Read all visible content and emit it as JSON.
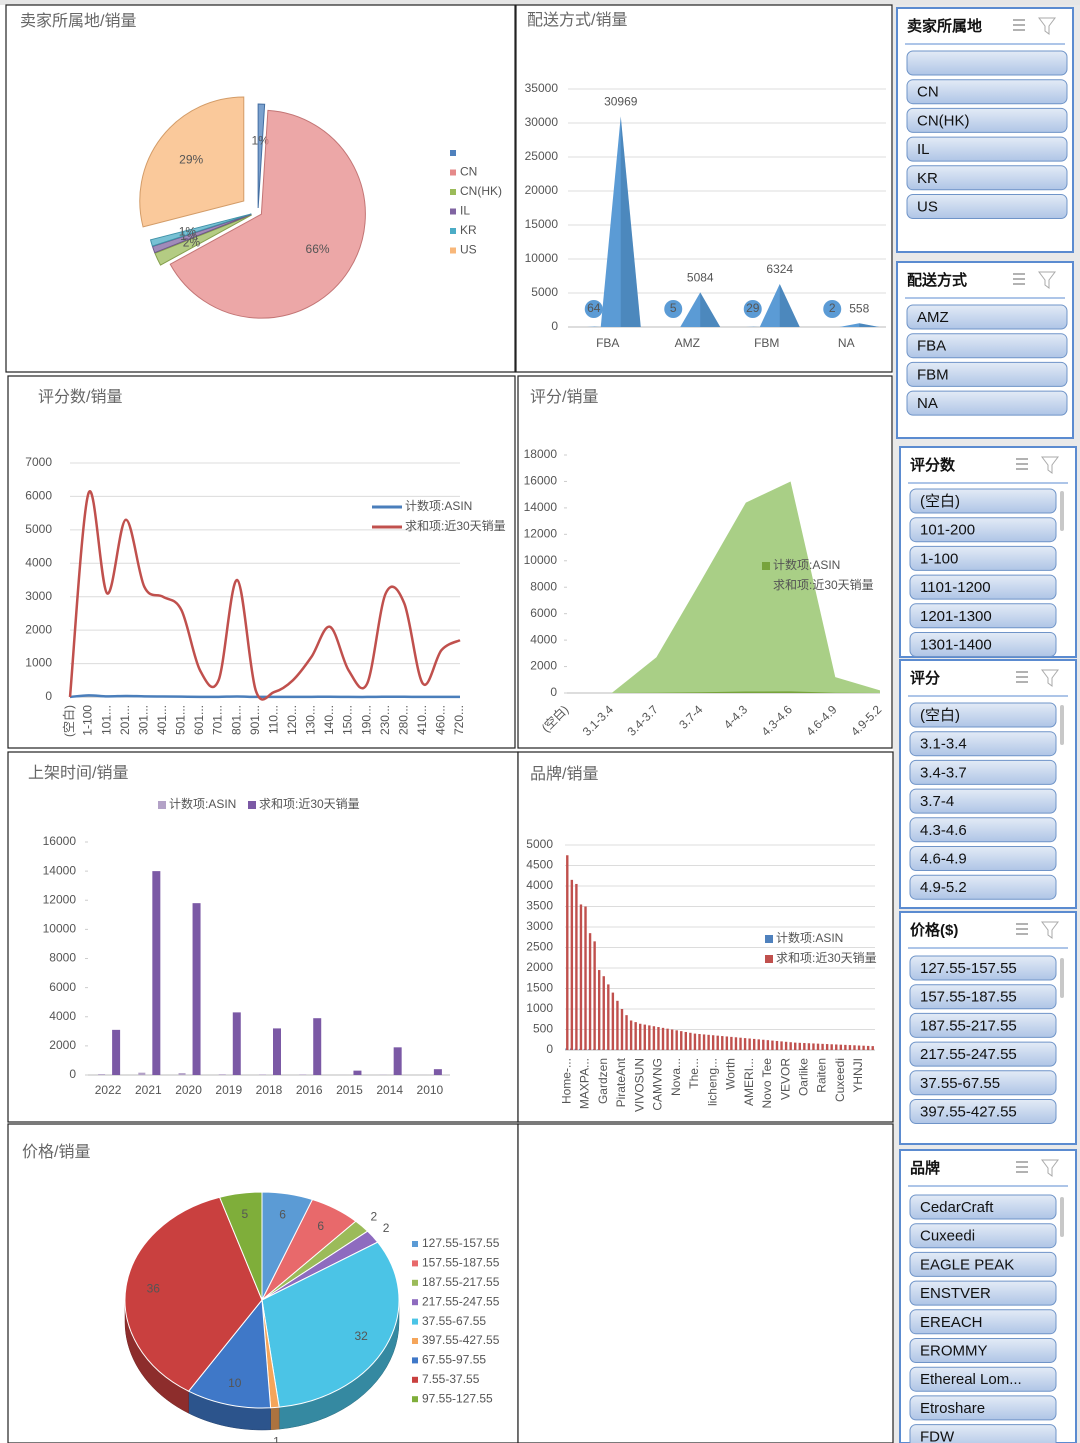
{
  "chart_data": [
    {
      "type": "pie",
      "title": "卖家所属地/销量",
      "categories": [
        null,
        "CN",
        "CN(HK)",
        "IL",
        "KR",
        "US"
      ],
      "values": [
        1,
        66,
        2,
        1,
        1,
        29
      ],
      "value_labels": [
        "1%",
        "66%",
        "2%",
        "1%",
        "1%",
        "29%"
      ],
      "colors": [
        "#4f81bd",
        "#e58a8a",
        "#9bbb59",
        "#8064a2",
        "#4bacc6",
        "#f8b77a"
      ],
      "legend": "right"
    },
    {
      "type": "bar",
      "shape": "cone",
      "title": "配送方式/销量",
      "categories": [
        "FBA",
        "AMZ",
        "FBM",
        "NA"
      ],
      "series": [
        {
          "color": "#5b9bd5",
          "values": [
            64,
            5,
            29,
            2
          ]
        },
        {
          "color": "#5b9bd5",
          "values": [
            30969,
            5084,
            6324,
            558
          ]
        }
      ],
      "ylim": [
        0,
        35000
      ],
      "yticks": [
        0,
        5000,
        10000,
        15000,
        20000,
        25000,
        30000,
        35000
      ],
      "grid": true,
      "show_values": true
    },
    {
      "type": "line",
      "smooth": true,
      "title": "评分数/销量",
      "categories": [
        "(空白)",
        "1-100",
        "101...",
        "201...",
        "301...",
        "401...",
        "501...",
        "601...",
        "701...",
        "801...",
        "901...",
        "110...",
        "120...",
        "130...",
        "140...",
        "150...",
        "190...",
        "230...",
        "280...",
        "410...",
        "460...",
        "720..."
      ],
      "series": [
        {
          "name": "计数项:ASIN",
          "color": "#4a7ebb",
          "values": [
            2,
            50,
            20,
            30,
            20,
            15,
            10,
            5,
            5,
            15,
            3,
            3,
            3,
            5,
            8,
            3,
            2,
            8,
            6,
            2,
            4,
            5
          ]
        },
        {
          "name": "求和项:近30天销量",
          "color": "#c0504d",
          "values": [
            0,
            6100,
            3100,
            5300,
            3300,
            3000,
            2600,
            800,
            500,
            3500,
            200,
            150,
            500,
            1200,
            2100,
            800,
            400,
            3100,
            2800,
            400,
            1400,
            1700
          ]
        }
      ],
      "ylim": [
        0,
        7000
      ],
      "yticks": [
        0,
        1000,
        2000,
        3000,
        4000,
        5000,
        6000,
        7000
      ],
      "grid": true,
      "legend": "right"
    },
    {
      "type": "area",
      "title": "评分/销量",
      "categories": [
        "(空白)",
        "3.1-3.4",
        "3.4-3.7",
        "3.7-4",
        "4-4.3",
        "4.3-4.6",
        "4.6-4.9",
        "4.9-5.2"
      ],
      "series": [
        {
          "name": "计数项:ASIN",
          "color": "#77a33c",
          "values": [
            1,
            3,
            20,
            60,
            110,
            120,
            15,
            3
          ]
        },
        {
          "name": "求和项:近30天销量",
          "color": "#a9cf86",
          "values": [
            0,
            0,
            2700,
            8500,
            14400,
            16000,
            1200,
            200
          ]
        }
      ],
      "ylim": [
        0,
        18000
      ],
      "yticks": [
        0,
        2000,
        4000,
        6000,
        8000,
        10000,
        12000,
        14000,
        16000,
        18000
      ],
      "grid": false,
      "legend": "right"
    },
    {
      "type": "bar",
      "title": "上架时间/销量",
      "categories": [
        "2022",
        "2021",
        "2020",
        "2019",
        "2018",
        "2016",
        "2015",
        "2014",
        "2010"
      ],
      "series": [
        {
          "name": "计数项:ASIN",
          "color": "#b3a2c7",
          "values": [
            60,
            160,
            130,
            50,
            40,
            40,
            5,
            20,
            5
          ]
        },
        {
          "name": "求和项:近30天销量",
          "color": "#7b59a5",
          "values": [
            3100,
            14000,
            11800,
            4300,
            3200,
            3900,
            300,
            1900,
            400
          ]
        }
      ],
      "ylim": [
        0,
        16000
      ],
      "yticks": [
        0,
        2000,
        4000,
        6000,
        8000,
        10000,
        12000,
        14000,
        16000
      ],
      "grid": false,
      "legend": "top"
    },
    {
      "type": "bar",
      "title": "品牌/销量",
      "categories": [
        "Home-...",
        null,
        null,
        null,
        "MAXPA...",
        null,
        null,
        null,
        "Gardzen",
        null,
        null,
        null,
        "PirateAnt",
        null,
        null,
        null,
        "VIVOSUN",
        null,
        null,
        null,
        "CAMVNG",
        null,
        null,
        null,
        "Nova...",
        null,
        null,
        null,
        "The...",
        null,
        null,
        null,
        "licheng...",
        null,
        null,
        null,
        "Worth",
        null,
        null,
        null,
        "AMERI...",
        null,
        null,
        null,
        "Novo Tee",
        null,
        null,
        null,
        "VEVOR",
        null,
        null,
        null,
        "Oarlike",
        null,
        null,
        null,
        "Raiten",
        null,
        null,
        null,
        "Cuxeedi",
        null,
        null,
        null,
        "YHNJI",
        null,
        null,
        null
      ],
      "series": [
        {
          "name": "计数项:ASIN",
          "color": "#4f81bd",
          "values": [
            40,
            35,
            30,
            28,
            25,
            22,
            20,
            18,
            15,
            14,
            12,
            11,
            10,
            9,
            8,
            8,
            7,
            7,
            7,
            6,
            6,
            6,
            6,
            5,
            5,
            5,
            5,
            5,
            4,
            4,
            4,
            4,
            4,
            4,
            4,
            3,
            3,
            3,
            3,
            3,
            3,
            3,
            3,
            3,
            3,
            2,
            2,
            2,
            2,
            2,
            2,
            2,
            2,
            2,
            2,
            2,
            2,
            2,
            2,
            2,
            1,
            1,
            1,
            1,
            1,
            1,
            1,
            1
          ]
        },
        {
          "name": "求和项:近30天销量",
          "color": "#c0504d",
          "values": [
            4750,
            4150,
            4050,
            3550,
            3500,
            2850,
            2650,
            1950,
            1800,
            1600,
            1400,
            1200,
            1000,
            850,
            720,
            680,
            640,
            620,
            600,
            580,
            560,
            540,
            520,
            500,
            480,
            460,
            440,
            420,
            400,
            390,
            380,
            370,
            360,
            350,
            340,
            330,
            320,
            310,
            300,
            290,
            280,
            270,
            260,
            250,
            240,
            230,
            220,
            210,
            200,
            190,
            180,
            175,
            170,
            165,
            160,
            155,
            150,
            145,
            140,
            135,
            130,
            125,
            120,
            115,
            110,
            105,
            100,
            95
          ]
        }
      ],
      "ylim": [
        0,
        5000
      ],
      "yticks": [
        0,
        500,
        1000,
        1500,
        2000,
        2500,
        3000,
        3500,
        4000,
        4500,
        5000
      ],
      "grid": true,
      "legend": "right"
    },
    {
      "type": "pie",
      "three_d": true,
      "title": "价格/销量",
      "categories": [
        "127.55-157.55",
        "157.55-187.55",
        "187.55-217.55",
        "217.55-247.55",
        "37.55-67.55",
        "397.55-427.55",
        "67.55-97.55",
        "7.55-37.55",
        "97.55-127.55"
      ],
      "values": [
        6,
        6,
        2,
        2,
        32,
        1,
        10,
        36,
        5
      ],
      "colors": [
        "#5b9bd5",
        "#e8696b",
        "#9bbb59",
        "#8e6bbf",
        "#4bc4e6",
        "#f5a55a",
        "#3f78c8",
        "#c9403f",
        "#7fae3a"
      ],
      "legend": "right"
    }
  ],
  "slicers": [
    {
      "title": "卖家所属地",
      "items": [
        null,
        "CN",
        "CN(HK)",
        "IL",
        "KR",
        "US"
      ]
    },
    {
      "title": "配送方式",
      "items": [
        "AMZ",
        "FBA",
        "FBM",
        "NA"
      ]
    },
    {
      "title": "评分数",
      "items": [
        "(空白)",
        "101-200",
        "1-100",
        "1101-1200",
        "1201-1300",
        "1301-1400"
      ]
    },
    {
      "title": "评分",
      "items": [
        "(空白)",
        "3.1-3.4",
        "3.4-3.7",
        "3.7-4",
        "4.3-4.6",
        "4.6-4.9",
        "4.9-5.2"
      ]
    },
    {
      "title": "价格($)",
      "items": [
        "127.55-157.55",
        "157.55-187.55",
        "187.55-217.55",
        "217.55-247.55",
        "37.55-67.55",
        "397.55-427.55"
      ]
    },
    {
      "title": "品牌",
      "items": [
        "CedarCraft",
        "Cuxeedi",
        "EAGLE PEAK",
        "ENSTVER",
        "EREACH",
        "EROMMY",
        "Ethereal Lom...",
        "Etroshare",
        "FDW"
      ]
    }
  ]
}
